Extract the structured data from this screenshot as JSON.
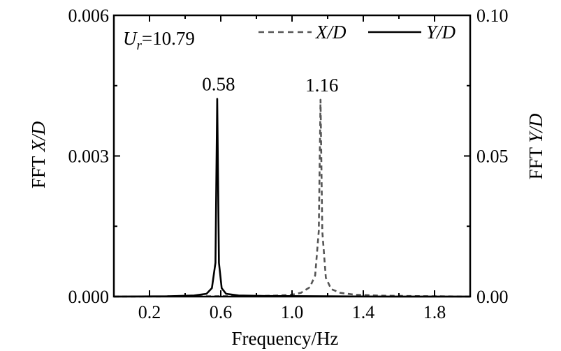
{
  "chart_data": {
    "type": "line",
    "annotation": {
      "symbol": "U",
      "subscript": "r",
      "value": "=10.79"
    },
    "xlabel": "Frequency/Hz",
    "ylabel_left": {
      "prefix": "FFT ",
      "italic": "X/D"
    },
    "ylabel_right": {
      "prefix": "FFT ",
      "italic": "Y/D"
    },
    "xlim": [
      0.0,
      2.0
    ],
    "ylim_left": [
      0.0,
      0.006
    ],
    "ylim_right": [
      0.0,
      0.1
    ],
    "x_ticks": [
      0.2,
      0.6,
      1.0,
      1.4,
      1.8
    ],
    "x_tick_labels": [
      "0.2",
      "0.6",
      "1.0",
      "1.4",
      "1.8"
    ],
    "y_left_ticks": [
      0.0,
      0.003,
      0.006
    ],
    "y_left_tick_labels": [
      "0.000",
      "0.003",
      "0.006"
    ],
    "y_right_ticks": [
      0.0,
      0.05,
      0.1
    ],
    "y_right_tick_labels": [
      "0.00",
      "0.05",
      "0.10"
    ],
    "peak_labels": [
      {
        "x": 0.58,
        "y_axis": "right",
        "y": 0.0703,
        "label": "0.58"
      },
      {
        "x": 1.16,
        "y_axis": "left",
        "y": 0.0042,
        "label": "1.16"
      }
    ],
    "series": [
      {
        "name": "X/D",
        "axis": "left",
        "style": "dashed",
        "color": "#555555",
        "x": [
          0.0,
          0.8,
          0.9,
          1.0,
          1.05,
          1.1,
          1.13,
          1.15,
          1.16,
          1.17,
          1.19,
          1.22,
          1.27,
          1.35,
          1.5,
          1.7,
          2.0
        ],
        "y": [
          0.0,
          1e-05,
          2e-05,
          4e-05,
          8e-05,
          0.0002,
          0.00045,
          0.0014,
          0.0042,
          0.0014,
          0.0004,
          0.00016,
          8e-05,
          4e-05,
          2e-05,
          1e-05,
          0.0
        ]
      },
      {
        "name": "Y/D",
        "axis": "right",
        "style": "solid",
        "color": "#000000",
        "x": [
          0.0,
          0.3,
          0.45,
          0.52,
          0.55,
          0.57,
          0.58,
          0.59,
          0.605,
          0.63,
          0.7,
          0.85,
          1.2,
          1.6,
          2.0
        ],
        "y": [
          0.0,
          0.0001,
          0.0004,
          0.001,
          0.003,
          0.012,
          0.0703,
          0.012,
          0.003,
          0.001,
          0.0004,
          0.0002,
          0.0001,
          0.0,
          0.0
        ]
      }
    ]
  }
}
